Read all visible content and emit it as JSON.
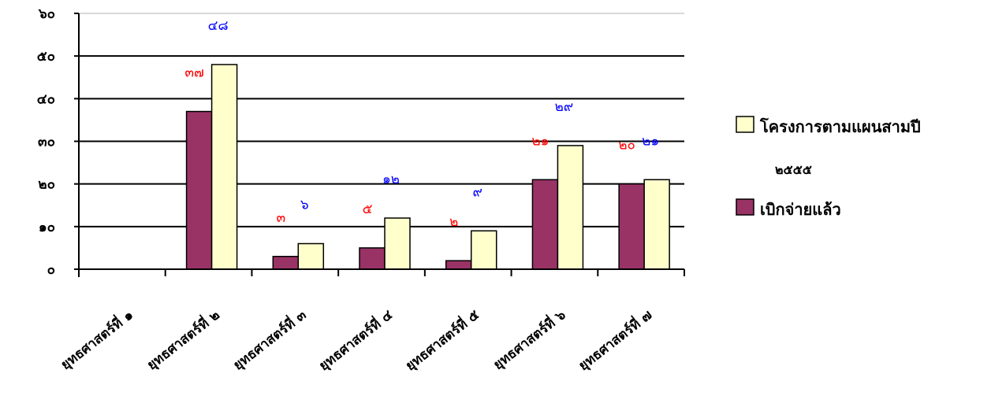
{
  "chart_data": {
    "type": "bar",
    "ylim": [
      0,
      60
    ],
    "yticks": [
      "๐",
      "๑๐",
      "๒๐",
      "๓๐",
      "๔๐",
      "๕๐",
      "๖๐"
    ],
    "categories": [
      "ยุทธศาสตร์ที่ ๑",
      "ยุทธศาสตร์ที่ ๒",
      "ยุทธศาสตร์ที่ ๓",
      "ยุทธศาสตร์ที่ ๔",
      "ยุทธศาสตร์ที่ ๕",
      "ยุทธศาสตร์ที่ ๖",
      "ยุทธศาสตร์ที่ ๗"
    ],
    "series": [
      {
        "name": "เบิกจ่ายแล้ว",
        "color": "#993366",
        "values": [
          0,
          37,
          3,
          5,
          2,
          21,
          20
        ],
        "labels": [
          "",
          "๓๗",
          "๓",
          "๕",
          "๒",
          "๒๑",
          "๒๐"
        ],
        "label_color": "#ff0000"
      },
      {
        "name": "โครงการตามแผนสามปี",
        "name_line2": "๒๕๕๕",
        "color": "#ffffcc",
        "values": [
          0,
          48,
          6,
          12,
          9,
          29,
          21
        ],
        "labels": [
          "",
          "๔๘",
          "๖",
          "๑๒",
          "๙",
          "๒๙",
          "๒๑"
        ],
        "label_color": "#0000ff"
      }
    ],
    "grid": true,
    "legend_position": "right"
  }
}
